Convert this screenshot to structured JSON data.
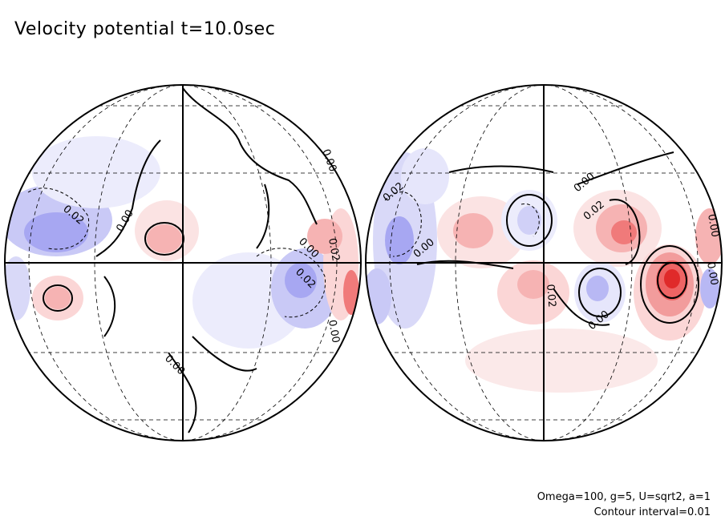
{
  "title": "Velocity potential t=10.0sec",
  "params": "Omega=100, g=5, U=sqrt2, a=1",
  "contour_interval": "Contour interval=0.01",
  "colors": {
    "positive": "#f26b6b",
    "positive_light": "#fbe3e3",
    "negative": "#7f7ff0",
    "negative_light": "#e6e6fb",
    "outline": "#000000"
  },
  "contour_labels": {
    "left": [
      "0.02",
      "0.00",
      "0.00",
      "0.00",
      "0.00",
      "0.02",
      "0.02",
      "0.00"
    ],
    "right": [
      "0.02",
      "0.00",
      "0.00",
      "0.02",
      "0.02",
      "0.00",
      "0.00",
      "0.00"
    ]
  }
}
